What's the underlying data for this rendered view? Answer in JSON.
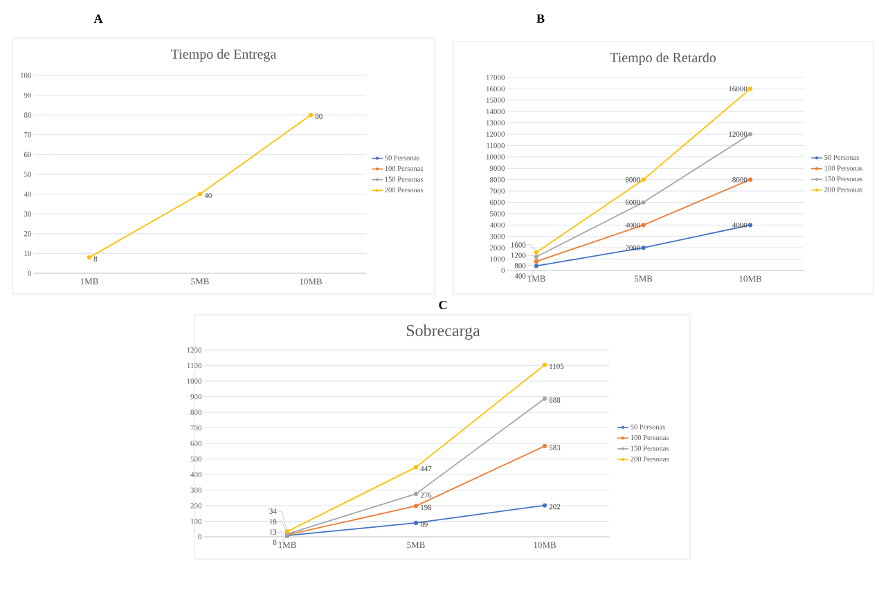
{
  "chart_data": [
    {
      "type": "line",
      "title": "Tiempo de Entrega",
      "annotations": [
        "A"
      ],
      "categories": [
        "1MB",
        "5MB",
        "10MB"
      ],
      "series": [
        {
          "name": "50 Personas",
          "color": "#4472c4",
          "values": [
            null,
            null,
            null
          ]
        },
        {
          "name": "100 Personas",
          "color": "#ed7d31",
          "values": [
            null,
            null,
            null
          ]
        },
        {
          "name": "150 Personas",
          "color": "#a5a5a5",
          "values": [
            null,
            null,
            null
          ]
        },
        {
          "name": "200 Personas",
          "color": "#ffc000",
          "values": [
            8,
            40,
            80
          ]
        }
      ],
      "ylim": [
        0,
        100
      ],
      "yticks": [
        0,
        10,
        20,
        30,
        40,
        50,
        60,
        70,
        80,
        90,
        100
      ],
      "grid": "y",
      "legend": "right",
      "marker": "circle",
      "data_labels": true
    },
    {
      "type": "line",
      "title": "Tiempo de Retardo",
      "annotations": [
        "B"
      ],
      "categories": [
        "1MB",
        "5MB",
        "10MB"
      ],
      "series": [
        {
          "name": "50 Personas",
          "color": "#4472c4",
          "values": [
            400,
            2000,
            4000
          ]
        },
        {
          "name": "100 Personas",
          "color": "#ed7d31",
          "values": [
            800,
            4000,
            8000
          ]
        },
        {
          "name": "150 Personas",
          "color": "#a5a5a5",
          "values": [
            1200,
            6000,
            12000
          ]
        },
        {
          "name": "200 Personas",
          "color": "#ffc000",
          "values": [
            1600,
            8000,
            16000
          ]
        }
      ],
      "ylim": [
        0,
        17000
      ],
      "yticks": [
        0,
        1000,
        2000,
        3000,
        4000,
        5000,
        6000,
        7000,
        8000,
        9000,
        10000,
        11000,
        12000,
        13000,
        14000,
        15000,
        16000,
        17000
      ],
      "grid": "y",
      "legend": "right",
      "marker": "circle",
      "data_labels": true
    },
    {
      "type": "line",
      "title": "Sobrecarga",
      "annotations": [
        "C"
      ],
      "categories": [
        "1MB",
        "5MB",
        "10MB"
      ],
      "series": [
        {
          "name": "50 Personas",
          "color": "#4472c4",
          "values": [
            8,
            89,
            202
          ]
        },
        {
          "name": "100 Personas",
          "color": "#ed7d31",
          "values": [
            13,
            198,
            583
          ]
        },
        {
          "name": "150 Personas",
          "color": "#a5a5a5",
          "values": [
            18,
            276,
            888
          ]
        },
        {
          "name": "200 Personas",
          "color": "#ffc000",
          "values": [
            34,
            447,
            1105
          ]
        }
      ],
      "ylim": [
        0,
        1200
      ],
      "yticks": [
        0,
        100,
        200,
        300,
        400,
        500,
        600,
        700,
        800,
        900,
        1000,
        1100,
        1200
      ],
      "grid": "y",
      "legend": "right",
      "marker": "circle",
      "data_labels": true
    }
  ]
}
